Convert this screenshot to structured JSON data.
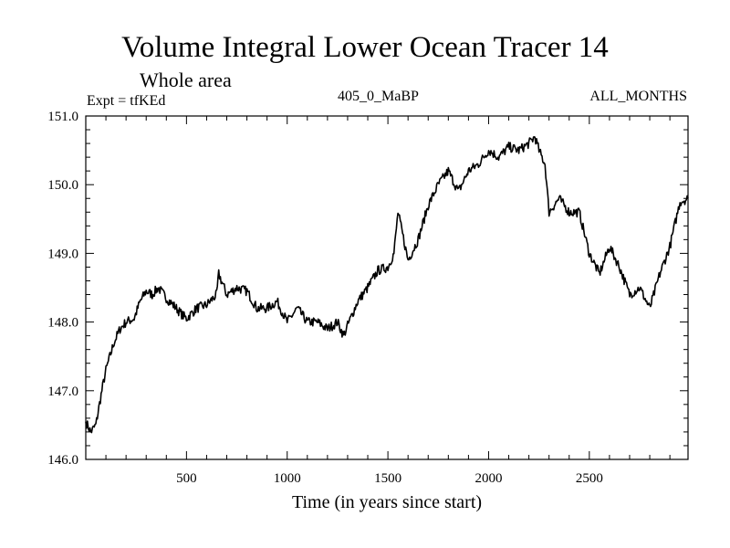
{
  "chart_data": {
    "type": "line",
    "title": "Volume Integral Lower Ocean Tracer 14",
    "subtitle": "Whole area",
    "experiment": "Expt = tfKEd",
    "run": "405_0_MaBP",
    "months": "ALL_MONTHS",
    "xlabel": "Time (in years since start)",
    "ylabel": "",
    "xlim": [
      0,
      2990
    ],
    "ylim": [
      146.0,
      151.0
    ],
    "xticks": [
      500,
      1000,
      1500,
      2000,
      2500
    ],
    "xtick_labels": [
      "500",
      "1000",
      "1500",
      "2000",
      "2500"
    ],
    "yticks": [
      146.0,
      147.0,
      148.0,
      149.0,
      150.0,
      151.0
    ],
    "ytick_labels": [
      "146.0",
      "147.0",
      "148.0",
      "149.0",
      "150.0",
      "151.0"
    ],
    "grid": false,
    "series": [
      {
        "color": "#000000",
        "x": [
          0,
          25,
          50,
          80,
          100,
          140,
          170,
          200,
          240,
          270,
          300,
          330,
          360,
          400,
          450,
          480,
          500,
          550,
          600,
          650,
          660,
          700,
          750,
          800,
          850,
          900,
          950,
          1000,
          1050,
          1100,
          1150,
          1200,
          1250,
          1280,
          1300,
          1350,
          1400,
          1450,
          1500,
          1530,
          1550,
          1600,
          1650,
          1700,
          1750,
          1800,
          1850,
          1900,
          1950,
          2000,
          2050,
          2100,
          2150,
          2200,
          2230,
          2250,
          2280,
          2300,
          2350,
          2400,
          2450,
          2500,
          2550,
          2600,
          2650,
          2700,
          2750,
          2800,
          2850,
          2900,
          2950,
          2990
        ],
        "y": [
          146.55,
          146.4,
          146.5,
          147.0,
          147.3,
          147.7,
          147.9,
          148.0,
          148.05,
          148.3,
          148.45,
          148.4,
          148.5,
          148.35,
          148.2,
          148.1,
          148.05,
          148.2,
          148.25,
          148.4,
          148.7,
          148.4,
          148.5,
          148.45,
          148.2,
          148.2,
          148.3,
          148.0,
          148.2,
          148.0,
          148.0,
          147.9,
          148.0,
          147.8,
          147.95,
          148.3,
          148.5,
          148.75,
          148.8,
          149.0,
          149.6,
          148.9,
          149.2,
          149.7,
          150.0,
          150.2,
          149.9,
          150.2,
          150.3,
          150.5,
          150.4,
          150.55,
          150.5,
          150.6,
          150.7,
          150.5,
          150.3,
          149.6,
          149.8,
          149.6,
          149.6,
          149.0,
          148.7,
          149.1,
          148.8,
          148.4,
          148.5,
          148.2,
          148.7,
          149.1,
          149.75,
          149.8
        ]
      }
    ]
  }
}
